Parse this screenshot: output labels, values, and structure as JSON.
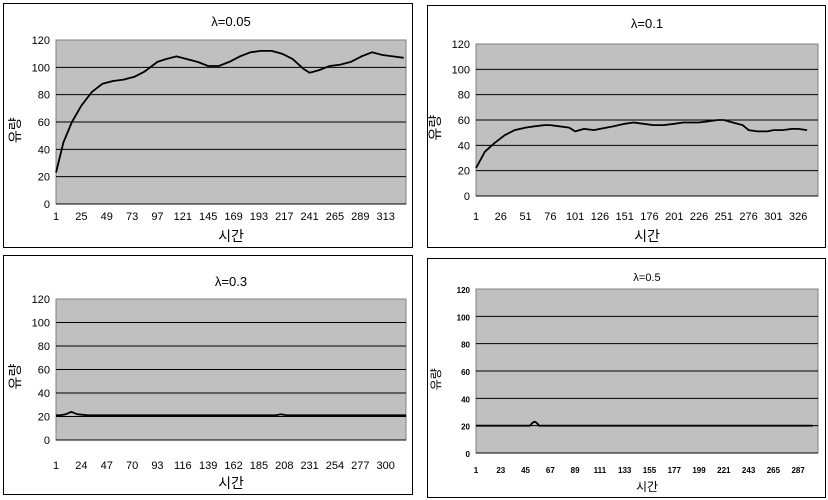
{
  "chart_data": [
    {
      "type": "line",
      "title": "λ=0.05",
      "xlabel": "시간",
      "ylabel": "유량",
      "ylim": [
        0,
        120
      ],
      "yticks": [
        "0",
        "20",
        "40",
        "60",
        "80",
        "100",
        "120"
      ],
      "xticks": [
        "1",
        "25",
        "49",
        "73",
        "97",
        "121",
        "145",
        "169",
        "193",
        "217",
        "241",
        "265",
        "289",
        "313"
      ],
      "grid": true,
      "series": [
        {
          "x": [
            1,
            8,
            16,
            25,
            35,
            45,
            55,
            65,
            75,
            85,
            97,
            105,
            115,
            125,
            135,
            145,
            155,
            165,
            175,
            185,
            195,
            205,
            215,
            225,
            235,
            241,
            250,
            260,
            270,
            280,
            290,
            300,
            310,
            320,
            330
          ],
          "y": [
            23,
            45,
            60,
            72,
            82,
            88,
            90,
            91,
            93,
            97,
            104,
            106,
            108,
            106,
            104,
            101,
            101,
            104,
            108,
            111,
            112,
            112,
            110,
            106,
            99,
            96,
            98,
            101,
            102,
            104,
            108,
            111,
            109,
            108,
            107
          ]
        }
      ]
    },
    {
      "type": "line",
      "title": "λ=0.1",
      "xlabel": "시간",
      "ylabel": "유량",
      "ylim": [
        0,
        120
      ],
      "yticks": [
        "0",
        "20",
        "40",
        "60",
        "80",
        "100",
        "120"
      ],
      "xticks": [
        "1",
        "26",
        "51",
        "76",
        "101",
        "126",
        "151",
        "176",
        "201",
        "226",
        "251",
        "276",
        "301",
        "326"
      ],
      "grid": true,
      "series": [
        {
          "x": [
            1,
            10,
            20,
            30,
            40,
            51,
            60,
            70,
            76,
            85,
            95,
            101,
            110,
            120,
            126,
            140,
            151,
            160,
            170,
            180,
            190,
            201,
            210,
            220,
            226,
            235,
            245,
            251,
            260,
            270,
            276,
            285,
            295,
            301,
            310,
            320,
            326,
            335
          ],
          "y": [
            22,
            35,
            42,
            48,
            52,
            54,
            55,
            56,
            56,
            55,
            54,
            51,
            53,
            52,
            53,
            55,
            57,
            58,
            57,
            56,
            56,
            57,
            58,
            58,
            58,
            59,
            60,
            60,
            58,
            56,
            52,
            51,
            51,
            52,
            52,
            53,
            53,
            52
          ]
        }
      ]
    },
    {
      "type": "line",
      "title": "λ=0.3",
      "xlabel": "시간",
      "ylabel": "유량",
      "ylim": [
        0,
        120
      ],
      "yticks": [
        "0",
        "20",
        "40",
        "60",
        "80",
        "100",
        "120"
      ],
      "xticks": [
        "1",
        "24",
        "47",
        "70",
        "93",
        "116",
        "139",
        "162",
        "185",
        "208",
        "231",
        "254",
        "277",
        "300"
      ],
      "grid": true,
      "series": [
        {
          "x": [
            1,
            5,
            10,
            15,
            20,
            30,
            50,
            80,
            120,
            160,
            200,
            205,
            210,
            215,
            230,
            260,
            290,
            320
          ],
          "y": [
            21,
            21,
            22,
            24,
            22,
            21,
            21,
            21,
            21,
            21,
            21,
            22,
            21,
            21,
            21,
            21,
            21,
            21
          ]
        }
      ]
    },
    {
      "type": "line",
      "title": "λ=0.5",
      "xlabel": "시간",
      "ylabel": "유량",
      "ylim": [
        0,
        120
      ],
      "yticks": [
        "0",
        "20",
        "40",
        "60",
        "80",
        "100",
        "120"
      ],
      "xticks": [
        "1",
        "23",
        "45",
        "67",
        "89",
        "111",
        "133",
        "155",
        "177",
        "199",
        "221",
        "243",
        "265",
        "287"
      ],
      "grid": true,
      "series": [
        {
          "x": [
            1,
            30,
            49,
            51,
            53,
            55,
            57,
            60,
            100,
            150,
            200,
            250,
            300
          ],
          "y": [
            20,
            20,
            20,
            22,
            23,
            22,
            20,
            20,
            20,
            20,
            20,
            20,
            20
          ]
        }
      ]
    }
  ]
}
